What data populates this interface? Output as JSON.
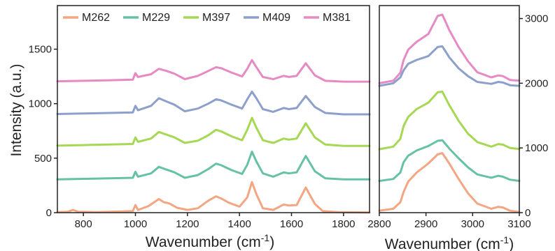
{
  "chart_data": [
    {
      "type": "line",
      "panel": "left",
      "xlabel": "Wavenumber (cm",
      "xlabel_sup": "-1",
      "xlabel_end": ")",
      "ylabel": "Intensity (a.u.)",
      "xlim": [
        700,
        1900
      ],
      "ylim": [
        0,
        1900
      ],
      "x_ticks": [
        800,
        1000,
        1200,
        1400,
        1600,
        1800
      ],
      "y_ticks": [
        0,
        500,
        1000,
        1500
      ],
      "legend": "top",
      "grid": false,
      "series": [
        {
          "name": "M262",
          "color": "#f4a582",
          "offset": 0,
          "points": [
            [
              700,
              5
            ],
            [
              740,
              8
            ],
            [
              760,
              25
            ],
            [
              780,
              8
            ],
            [
              850,
              5
            ],
            [
              940,
              10
            ],
            [
              990,
              15
            ],
            [
              1000,
              70
            ],
            [
              1010,
              25
            ],
            [
              1050,
              60
            ],
            [
              1090,
              125
            ],
            [
              1110,
              95
            ],
            [
              1130,
              85
            ],
            [
              1160,
              45
            ],
            [
              1200,
              25
            ],
            [
              1240,
              40
            ],
            [
              1280,
              110
            ],
            [
              1310,
              150
            ],
            [
              1330,
              130
            ],
            [
              1360,
              90
            ],
            [
              1400,
              55
            ],
            [
              1430,
              140
            ],
            [
              1448,
              280
            ],
            [
              1465,
              170
            ],
            [
              1490,
              40
            ],
            [
              1530,
              25
            ],
            [
              1570,
              75
            ],
            [
              1590,
              65
            ],
            [
              1620,
              70
            ],
            [
              1655,
              230
            ],
            [
              1690,
              80
            ],
            [
              1720,
              15
            ],
            [
              1780,
              5
            ],
            [
              1900,
              2
            ]
          ]
        },
        {
          "name": "M229",
          "color": "#66c2a5",
          "offset": 300,
          "points": [
            [
              700,
              305
            ],
            [
              800,
              310
            ],
            [
              900,
              315
            ],
            [
              990,
              320
            ],
            [
              1000,
              375
            ],
            [
              1010,
              330
            ],
            [
              1060,
              360
            ],
            [
              1090,
              420
            ],
            [
              1120,
              395
            ],
            [
              1150,
              370
            ],
            [
              1190,
              320
            ],
            [
              1240,
              345
            ],
            [
              1280,
              400
            ],
            [
              1310,
              450
            ],
            [
              1330,
              435
            ],
            [
              1370,
              390
            ],
            [
              1410,
              355
            ],
            [
              1430,
              440
            ],
            [
              1448,
              560
            ],
            [
              1465,
              470
            ],
            [
              1490,
              360
            ],
            [
              1530,
              330
            ],
            [
              1570,
              370
            ],
            [
              1590,
              360
            ],
            [
              1620,
              370
            ],
            [
              1655,
              520
            ],
            [
              1690,
              380
            ],
            [
              1730,
              315
            ],
            [
              1800,
              305
            ],
            [
              1900,
              305
            ]
          ]
        },
        {
          "name": "M397",
          "color": "#a6d854",
          "offset": 610,
          "points": [
            [
              700,
              615
            ],
            [
              800,
              620
            ],
            [
              900,
              625
            ],
            [
              990,
              630
            ],
            [
              1000,
              690
            ],
            [
              1010,
              650
            ],
            [
              1060,
              680
            ],
            [
              1090,
              740
            ],
            [
              1120,
              715
            ],
            [
              1150,
              690
            ],
            [
              1190,
              640
            ],
            [
              1240,
              660
            ],
            [
              1280,
              710
            ],
            [
              1310,
              760
            ],
            [
              1330,
              745
            ],
            [
              1370,
              700
            ],
            [
              1410,
              665
            ],
            [
              1430,
              760
            ],
            [
              1448,
              870
            ],
            [
              1465,
              780
            ],
            [
              1490,
              665
            ],
            [
              1530,
              640
            ],
            [
              1570,
              680
            ],
            [
              1590,
              670
            ],
            [
              1620,
              680
            ],
            [
              1655,
              820
            ],
            [
              1690,
              690
            ],
            [
              1730,
              625
            ],
            [
              1800,
              612
            ],
            [
              1900,
              612
            ]
          ]
        },
        {
          "name": "M409",
          "color": "#8da0cb",
          "offset": 900,
          "points": [
            [
              700,
              905
            ],
            [
              800,
              910
            ],
            [
              900,
              915
            ],
            [
              990,
              920
            ],
            [
              1000,
              980
            ],
            [
              1010,
              940
            ],
            [
              1060,
              980
            ],
            [
              1090,
              1050
            ],
            [
              1120,
              1020
            ],
            [
              1150,
              990
            ],
            [
              1190,
              930
            ],
            [
              1240,
              955
            ],
            [
              1280,
              1000
            ],
            [
              1310,
              1040
            ],
            [
              1330,
              1030
            ],
            [
              1370,
              990
            ],
            [
              1410,
              955
            ],
            [
              1430,
              1040
            ],
            [
              1448,
              1110
            ],
            [
              1465,
              1050
            ],
            [
              1490,
              950
            ],
            [
              1530,
              925
            ],
            [
              1570,
              960
            ],
            [
              1590,
              950
            ],
            [
              1620,
              960
            ],
            [
              1655,
              1070
            ],
            [
              1690,
              970
            ],
            [
              1730,
              915
            ],
            [
              1800,
              902
            ],
            [
              1900,
              902
            ]
          ]
        },
        {
          "name": "M381",
          "color": "#e78ac3",
          "offset": 1200,
          "points": [
            [
              700,
              1205
            ],
            [
              800,
              1210
            ],
            [
              900,
              1215
            ],
            [
              990,
              1220
            ],
            [
              1000,
              1280
            ],
            [
              1010,
              1245
            ],
            [
              1060,
              1270
            ],
            [
              1090,
              1320
            ],
            [
              1120,
              1300
            ],
            [
              1150,
              1275
            ],
            [
              1190,
              1225
            ],
            [
              1240,
              1255
            ],
            [
              1280,
              1300
            ],
            [
              1310,
              1335
            ],
            [
              1330,
              1325
            ],
            [
              1370,
              1285
            ],
            [
              1410,
              1250
            ],
            [
              1430,
              1320
            ],
            [
              1448,
              1400
            ],
            [
              1465,
              1335
            ],
            [
              1490,
              1245
            ],
            [
              1530,
              1225
            ],
            [
              1570,
              1255
            ],
            [
              1590,
              1245
            ],
            [
              1620,
              1255
            ],
            [
              1655,
              1370
            ],
            [
              1690,
              1260
            ],
            [
              1730,
              1210
            ],
            [
              1800,
              1202
            ],
            [
              1900,
              1202
            ]
          ]
        }
      ]
    },
    {
      "type": "line",
      "panel": "right",
      "xlabel": "Wavenumber (cm",
      "xlabel_sup": "-1",
      "xlabel_end": ")",
      "xlim": [
        2800,
        3100
      ],
      "ylim": [
        0,
        3200
      ],
      "x_ticks": [
        2800,
        2900,
        3000,
        3100
      ],
      "y_ticks": [
        0,
        1000,
        2000,
        3000
      ],
      "grid": false,
      "series": [
        {
          "name": "M262",
          "color": "#f4a582",
          "points": [
            [
              2800,
              30
            ],
            [
              2830,
              60
            ],
            [
              2845,
              160
            ],
            [
              2852,
              320
            ],
            [
              2862,
              480
            ],
            [
              2880,
              620
            ],
            [
              2905,
              760
            ],
            [
              2925,
              900
            ],
            [
              2935,
              920
            ],
            [
              2950,
              760
            ],
            [
              2970,
              520
            ],
            [
              2990,
              300
            ],
            [
              3010,
              140
            ],
            [
              3040,
              60
            ],
            [
              3055,
              90
            ],
            [
              3065,
              80
            ],
            [
              3080,
              30
            ],
            [
              3100,
              10
            ]
          ]
        },
        {
          "name": "M229",
          "color": "#66c2a5",
          "points": [
            [
              2800,
              490
            ],
            [
              2830,
              520
            ],
            [
              2845,
              620
            ],
            [
              2852,
              780
            ],
            [
              2862,
              880
            ],
            [
              2880,
              960
            ],
            [
              2905,
              1030
            ],
            [
              2925,
              1110
            ],
            [
              2935,
              1120
            ],
            [
              2950,
              990
            ],
            [
              2970,
              840
            ],
            [
              2990,
              700
            ],
            [
              3010,
              590
            ],
            [
              3040,
              540
            ],
            [
              3055,
              570
            ],
            [
              3065,
              555
            ],
            [
              3080,
              510
            ],
            [
              3100,
              490
            ]
          ]
        },
        {
          "name": "M397",
          "color": "#a6d854",
          "points": [
            [
              2800,
              980
            ],
            [
              2830,
              1020
            ],
            [
              2845,
              1140
            ],
            [
              2852,
              1340
            ],
            [
              2862,
              1480
            ],
            [
              2880,
              1600
            ],
            [
              2905,
              1700
            ],
            [
              2925,
              1860
            ],
            [
              2935,
              1870
            ],
            [
              2950,
              1660
            ],
            [
              2970,
              1420
            ],
            [
              2990,
              1220
            ],
            [
              3010,
              1090
            ],
            [
              3040,
              1020
            ],
            [
              3055,
              1060
            ],
            [
              3065,
              1050
            ],
            [
              3080,
              1000
            ],
            [
              3100,
              985
            ]
          ]
        },
        {
          "name": "M409",
          "color": "#8da0cb",
          "points": [
            [
              2800,
              1960
            ],
            [
              2830,
              2000
            ],
            [
              2845,
              2090
            ],
            [
              2852,
              2200
            ],
            [
              2862,
              2300
            ],
            [
              2880,
              2360
            ],
            [
              2905,
              2420
            ],
            [
              2925,
              2560
            ],
            [
              2935,
              2570
            ],
            [
              2950,
              2400
            ],
            [
              2970,
              2230
            ],
            [
              2990,
              2110
            ],
            [
              3010,
              2020
            ],
            [
              3040,
              1990
            ],
            [
              3055,
              2020
            ],
            [
              3065,
              2010
            ],
            [
              3080,
              1970
            ],
            [
              3100,
              1960
            ]
          ]
        },
        {
          "name": "M381",
          "color": "#e78ac3",
          "points": [
            [
              2800,
              2000
            ],
            [
              2830,
              2040
            ],
            [
              2845,
              2160
            ],
            [
              2852,
              2360
            ],
            [
              2862,
              2520
            ],
            [
              2880,
              2640
            ],
            [
              2905,
              2760
            ],
            [
              2925,
              3040
            ],
            [
              2935,
              3060
            ],
            [
              2950,
              2820
            ],
            [
              2970,
              2560
            ],
            [
              2990,
              2340
            ],
            [
              3010,
              2170
            ],
            [
              3040,
              2090
            ],
            [
              3055,
              2120
            ],
            [
              3065,
              2110
            ],
            [
              3080,
              2050
            ],
            [
              3100,
              2040
            ]
          ]
        }
      ]
    }
  ]
}
